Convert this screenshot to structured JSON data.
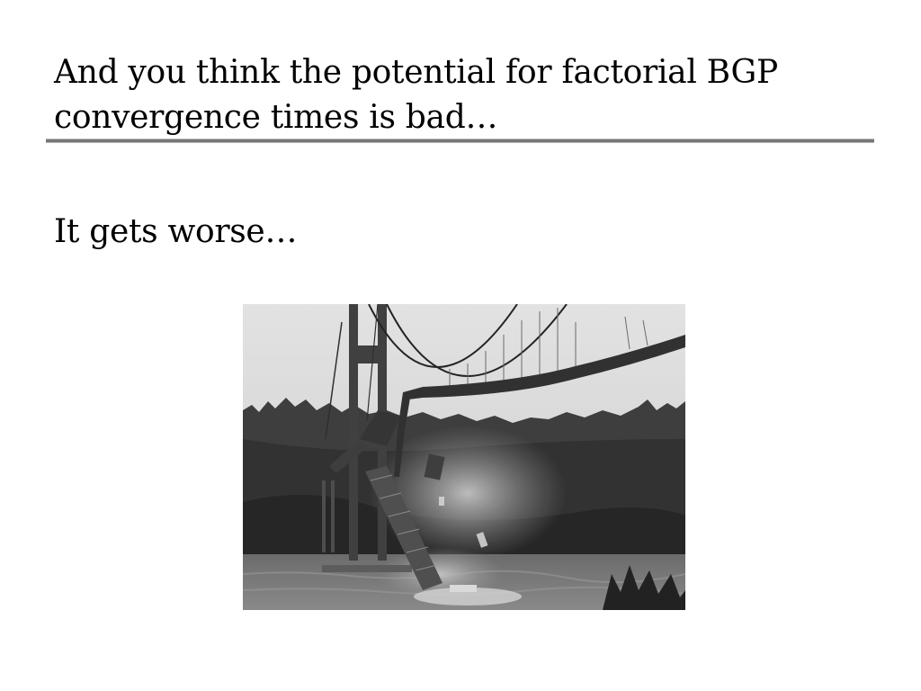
{
  "slide": {
    "title_lines": [
      "And you think the potential for factorial BGP",
      "convergence times is bad…"
    ],
    "body": "It gets worse…"
  },
  "image": {
    "icon": "collapsing-suspension-bridge-photo",
    "tone": "black-and-white"
  }
}
